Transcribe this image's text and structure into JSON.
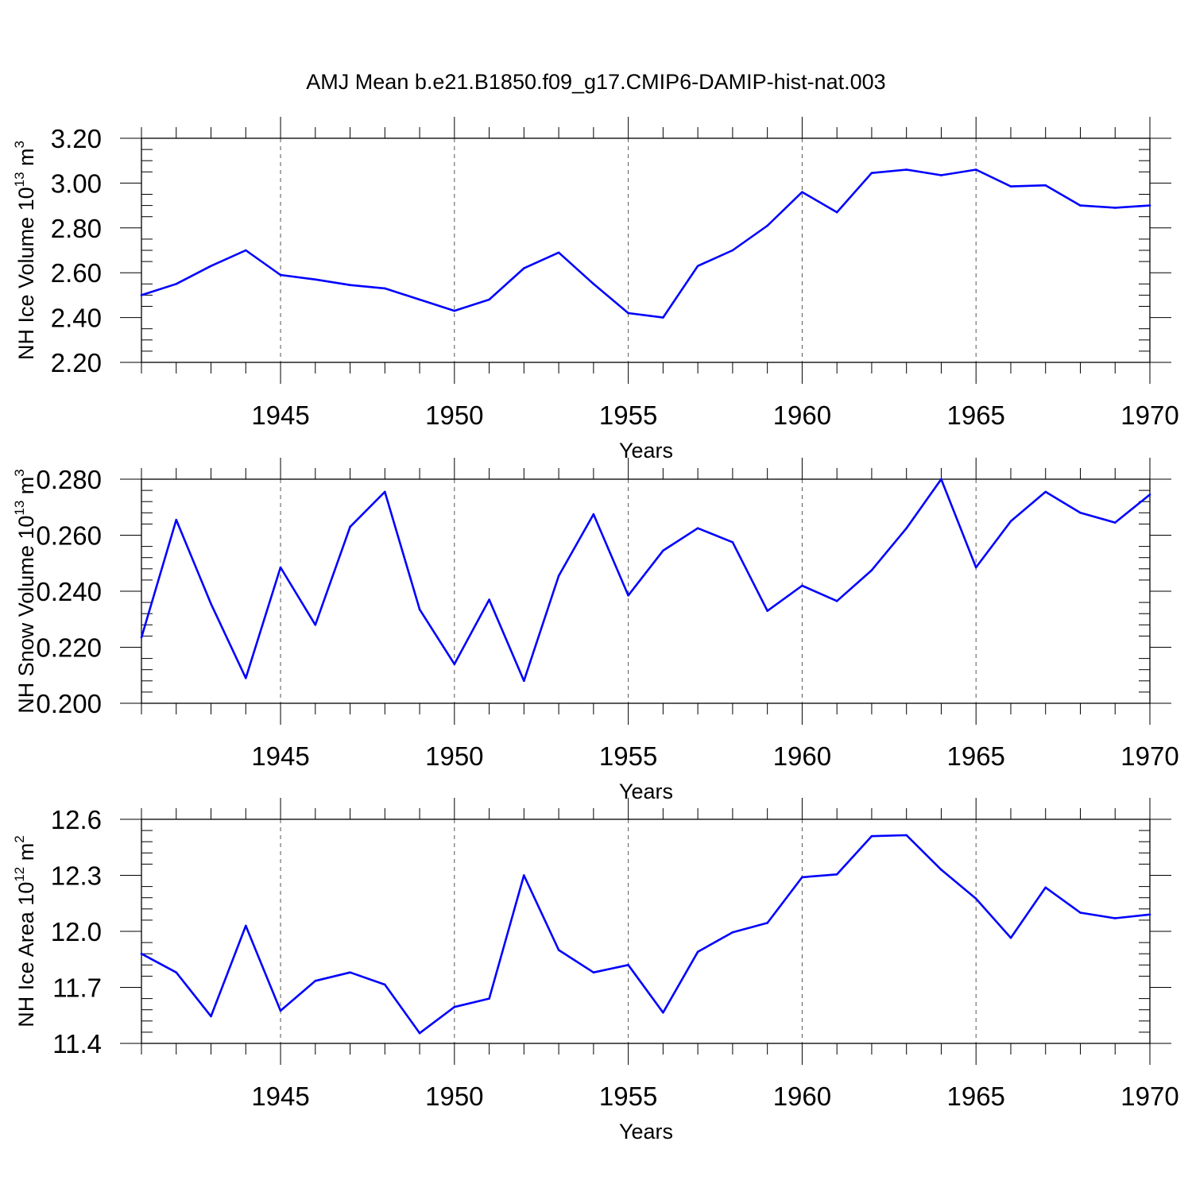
{
  "figure": {
    "title": "AMJ Mean b.e21.B1850.f09_g17.CMIP6-DAMIP-hist-nat.003",
    "line_color": "#0000ff"
  },
  "chart_data": [
    {
      "type": "line",
      "xlabel": "Years",
      "ylabel": {
        "text": "NH Ice Volume 10",
        "exp": "13",
        "unit": " m",
        "unit_exp": "3"
      },
      "xlim": [
        1941,
        1970
      ],
      "ylim": [
        2.2,
        3.2
      ],
      "x_ticks": [
        1945,
        1950,
        1955,
        1960,
        1965,
        1970
      ],
      "y_ticks": [
        2.2,
        2.4,
        2.6,
        2.8,
        3.0,
        3.2
      ],
      "y_tick_labels": [
        "2.20",
        "2.40",
        "2.60",
        "2.80",
        "3.00",
        "3.20"
      ],
      "y_minor_step": 0.05,
      "grid": "dashed vertical at major x ticks",
      "x": [
        1941,
        1942,
        1943,
        1944,
        1945,
        1946,
        1947,
        1948,
        1949,
        1950,
        1951,
        1952,
        1953,
        1954,
        1955,
        1956,
        1957,
        1958,
        1959,
        1960,
        1961,
        1962,
        1963,
        1964,
        1965,
        1966,
        1967,
        1968,
        1969,
        1970
      ],
      "values": [
        2.5,
        2.55,
        2.63,
        2.7,
        2.59,
        2.57,
        2.545,
        2.53,
        2.48,
        2.43,
        2.48,
        2.62,
        2.69,
        2.55,
        2.42,
        2.4,
        2.63,
        2.7,
        2.81,
        2.96,
        2.87,
        3.045,
        3.06,
        3.035,
        3.06,
        2.985,
        2.99,
        2.9,
        2.89,
        2.9
      ]
    },
    {
      "type": "line",
      "xlabel": "Years",
      "ylabel": {
        "text": "NH Snow Volume 10",
        "exp": "13",
        "unit": " m",
        "unit_exp": "3"
      },
      "xlim": [
        1941,
        1970
      ],
      "ylim": [
        0.2,
        0.28
      ],
      "x_ticks": [
        1945,
        1950,
        1955,
        1960,
        1965,
        1970
      ],
      "y_ticks": [
        0.2,
        0.22,
        0.24,
        0.26,
        0.28
      ],
      "y_tick_labels": [
        "0.200",
        "0.220",
        "0.240",
        "0.260",
        "0.280"
      ],
      "y_minor_step": 0.004,
      "grid": "dashed vertical at major x ticks",
      "x": [
        1941,
        1942,
        1943,
        1944,
        1945,
        1946,
        1947,
        1948,
        1949,
        1950,
        1951,
        1952,
        1953,
        1954,
        1955,
        1956,
        1957,
        1958,
        1959,
        1960,
        1961,
        1962,
        1963,
        1964,
        1965,
        1966,
        1967,
        1968,
        1969,
        1970
      ],
      "values": [
        0.2235,
        0.2655,
        0.2355,
        0.209,
        0.2485,
        0.228,
        0.263,
        0.2755,
        0.2335,
        0.214,
        0.237,
        0.208,
        0.2455,
        0.2675,
        0.2385,
        0.2545,
        0.2625,
        0.2575,
        0.233,
        0.242,
        0.2365,
        0.2475,
        0.2625,
        0.28,
        0.2485,
        0.265,
        0.2755,
        0.268,
        0.2645,
        0.2745
      ]
    },
    {
      "type": "line",
      "xlabel": "Years",
      "ylabel": {
        "text": "NH Ice Area 10",
        "exp": "12",
        "unit": " m",
        "unit_exp": "2"
      },
      "xlim": [
        1941,
        1970
      ],
      "ylim": [
        11.4,
        12.6
      ],
      "x_ticks": [
        1945,
        1950,
        1955,
        1960,
        1965,
        1970
      ],
      "y_ticks": [
        11.4,
        11.7,
        12.0,
        12.3,
        12.6
      ],
      "y_tick_labels": [
        "11.4",
        "11.7",
        "12.0",
        "12.3",
        "12.6"
      ],
      "y_minor_step": 0.06,
      "grid": "dashed vertical at major x ticks",
      "x": [
        1941,
        1942,
        1943,
        1944,
        1945,
        1946,
        1947,
        1948,
        1949,
        1950,
        1951,
        1952,
        1953,
        1954,
        1955,
        1956,
        1957,
        1958,
        1959,
        1960,
        1961,
        1962,
        1963,
        1964,
        1965,
        1966,
        1967,
        1968,
        1969,
        1970
      ],
      "values": [
        11.88,
        11.78,
        11.545,
        12.03,
        11.575,
        11.735,
        11.78,
        11.715,
        11.455,
        11.595,
        11.64,
        12.3,
        11.9,
        11.78,
        11.82,
        11.565,
        11.89,
        11.995,
        12.045,
        12.29,
        12.305,
        12.51,
        12.515,
        12.33,
        12.175,
        11.965,
        12.235,
        12.1,
        12.07,
        12.09
      ]
    }
  ]
}
